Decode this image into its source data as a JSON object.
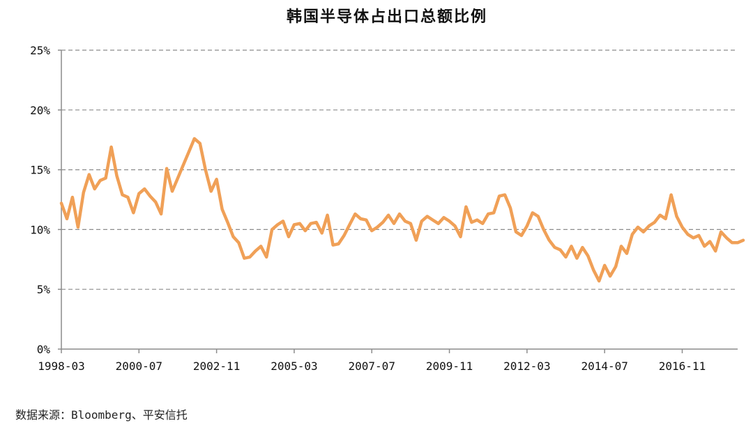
{
  "chart_data": {
    "type": "line",
    "title": "韩国半导体占出口总额比例",
    "source": "数据来源：Bloomberg、平安信托",
    "y_ticks": [
      "0%",
      "5%",
      "10%",
      "15%",
      "20%",
      "25%"
    ],
    "ylim": [
      0,
      25
    ],
    "x_ticks": [
      "1998-03",
      "2000-07",
      "2002-11",
      "2005-03",
      "2007-07",
      "2009-11",
      "2012-03",
      "2014-07",
      "2016-11"
    ],
    "x_range": [
      "1998-03",
      "2018-07"
    ],
    "grid": true,
    "color": "#F0A057",
    "series": [
      {
        "points": [
          [
            "1998-03",
            12.2
          ],
          [
            "1998-05",
            10.9
          ],
          [
            "1998-07",
            12.7
          ],
          [
            "1998-09",
            10.2
          ],
          [
            "1998-11",
            13.1
          ],
          [
            "1999-01",
            14.6
          ],
          [
            "1999-03",
            13.4
          ],
          [
            "1999-05",
            14.1
          ],
          [
            "1999-07",
            14.3
          ],
          [
            "1999-09",
            16.9
          ],
          [
            "1999-11",
            14.5
          ],
          [
            "2000-01",
            12.9
          ],
          [
            "2000-03",
            12.7
          ],
          [
            "2000-05",
            11.4
          ],
          [
            "2000-07",
            13.0
          ],
          [
            "2000-09",
            13.4
          ],
          [
            "2000-11",
            12.8
          ],
          [
            "2001-01",
            12.3
          ],
          [
            "2001-03",
            11.3
          ],
          [
            "2001-05",
            15.1
          ],
          [
            "2001-07",
            13.2
          ],
          [
            "2001-09",
            14.3
          ],
          [
            "2001-11",
            15.4
          ],
          [
            "2002-01",
            16.5
          ],
          [
            "2002-03",
            17.6
          ],
          [
            "2002-05",
            17.2
          ],
          [
            "2002-07",
            15.0
          ],
          [
            "2002-09",
            13.2
          ],
          [
            "2002-11",
            14.2
          ],
          [
            "2003-01",
            11.7
          ],
          [
            "2003-03",
            10.6
          ],
          [
            "2003-05",
            9.4
          ],
          [
            "2003-07",
            8.9
          ],
          [
            "2003-09",
            7.6
          ],
          [
            "2003-11",
            7.7
          ],
          [
            "2004-01",
            8.2
          ],
          [
            "2004-03",
            8.6
          ],
          [
            "2004-05",
            7.7
          ],
          [
            "2004-07",
            10.0
          ],
          [
            "2004-09",
            10.4
          ],
          [
            "2004-11",
            10.7
          ],
          [
            "2005-01",
            9.4
          ],
          [
            "2005-03",
            10.4
          ],
          [
            "2005-05",
            10.5
          ],
          [
            "2005-07",
            9.9
          ],
          [
            "2005-09",
            10.5
          ],
          [
            "2005-11",
            10.6
          ],
          [
            "2006-01",
            9.7
          ],
          [
            "2006-03",
            11.2
          ],
          [
            "2006-05",
            8.7
          ],
          [
            "2006-07",
            8.8
          ],
          [
            "2006-09",
            9.5
          ],
          [
            "2006-11",
            10.4
          ],
          [
            "2007-01",
            11.3
          ],
          [
            "2007-03",
            10.9
          ],
          [
            "2007-05",
            10.8
          ],
          [
            "2007-07",
            9.9
          ],
          [
            "2007-09",
            10.2
          ],
          [
            "2007-11",
            10.6
          ],
          [
            "2008-01",
            11.2
          ],
          [
            "2008-03",
            10.5
          ],
          [
            "2008-05",
            11.3
          ],
          [
            "2008-07",
            10.7
          ],
          [
            "2008-09",
            10.5
          ],
          [
            "2008-11",
            9.1
          ],
          [
            "2009-01",
            10.7
          ],
          [
            "2009-03",
            11.1
          ],
          [
            "2009-05",
            10.8
          ],
          [
            "2009-07",
            10.5
          ],
          [
            "2009-09",
            11.0
          ],
          [
            "2009-11",
            10.7
          ],
          [
            "2010-01",
            10.3
          ],
          [
            "2010-03",
            9.4
          ],
          [
            "2010-05",
            11.9
          ],
          [
            "2010-07",
            10.6
          ],
          [
            "2010-09",
            10.8
          ],
          [
            "2010-11",
            10.5
          ],
          [
            "2011-01",
            11.3
          ],
          [
            "2011-03",
            11.4
          ],
          [
            "2011-05",
            12.8
          ],
          [
            "2011-07",
            12.9
          ],
          [
            "2011-09",
            11.8
          ],
          [
            "2011-11",
            9.8
          ],
          [
            "2012-01",
            9.5
          ],
          [
            "2012-03",
            10.3
          ],
          [
            "2012-05",
            11.4
          ],
          [
            "2012-07",
            11.1
          ],
          [
            "2012-09",
            10.0
          ],
          [
            "2012-11",
            9.1
          ],
          [
            "2013-01",
            8.5
          ],
          [
            "2013-03",
            8.3
          ],
          [
            "2013-05",
            7.7
          ],
          [
            "2013-07",
            8.6
          ],
          [
            "2013-09",
            7.6
          ],
          [
            "2013-11",
            8.5
          ],
          [
            "2014-01",
            7.8
          ],
          [
            "2014-03",
            6.6
          ],
          [
            "2014-05",
            5.7
          ],
          [
            "2014-07",
            7.0
          ],
          [
            "2014-09",
            6.1
          ],
          [
            "2014-11",
            6.9
          ],
          [
            "2015-01",
            8.6
          ],
          [
            "2015-03",
            8.0
          ],
          [
            "2015-05",
            9.6
          ],
          [
            "2015-07",
            10.2
          ],
          [
            "2015-09",
            9.8
          ],
          [
            "2015-11",
            10.3
          ],
          [
            "2016-01",
            10.6
          ],
          [
            "2016-03",
            11.2
          ],
          [
            "2016-05",
            10.9
          ],
          [
            "2016-07",
            12.9
          ],
          [
            "2016-09",
            11.1
          ],
          [
            "2016-11",
            10.2
          ],
          [
            "2017-01",
            9.6
          ],
          [
            "2017-03",
            9.3
          ],
          [
            "2017-05",
            9.5
          ],
          [
            "2017-07",
            8.6
          ],
          [
            "2017-09",
            9.0
          ],
          [
            "2017-11",
            8.2
          ],
          [
            "2018-01",
            9.8
          ],
          [
            "2018-03",
            9.3
          ],
          [
            "2018-05",
            8.9
          ],
          [
            "2018-07",
            8.9
          ],
          [
            "2018-09",
            9.1
          ]
        ]
      }
    ]
  }
}
